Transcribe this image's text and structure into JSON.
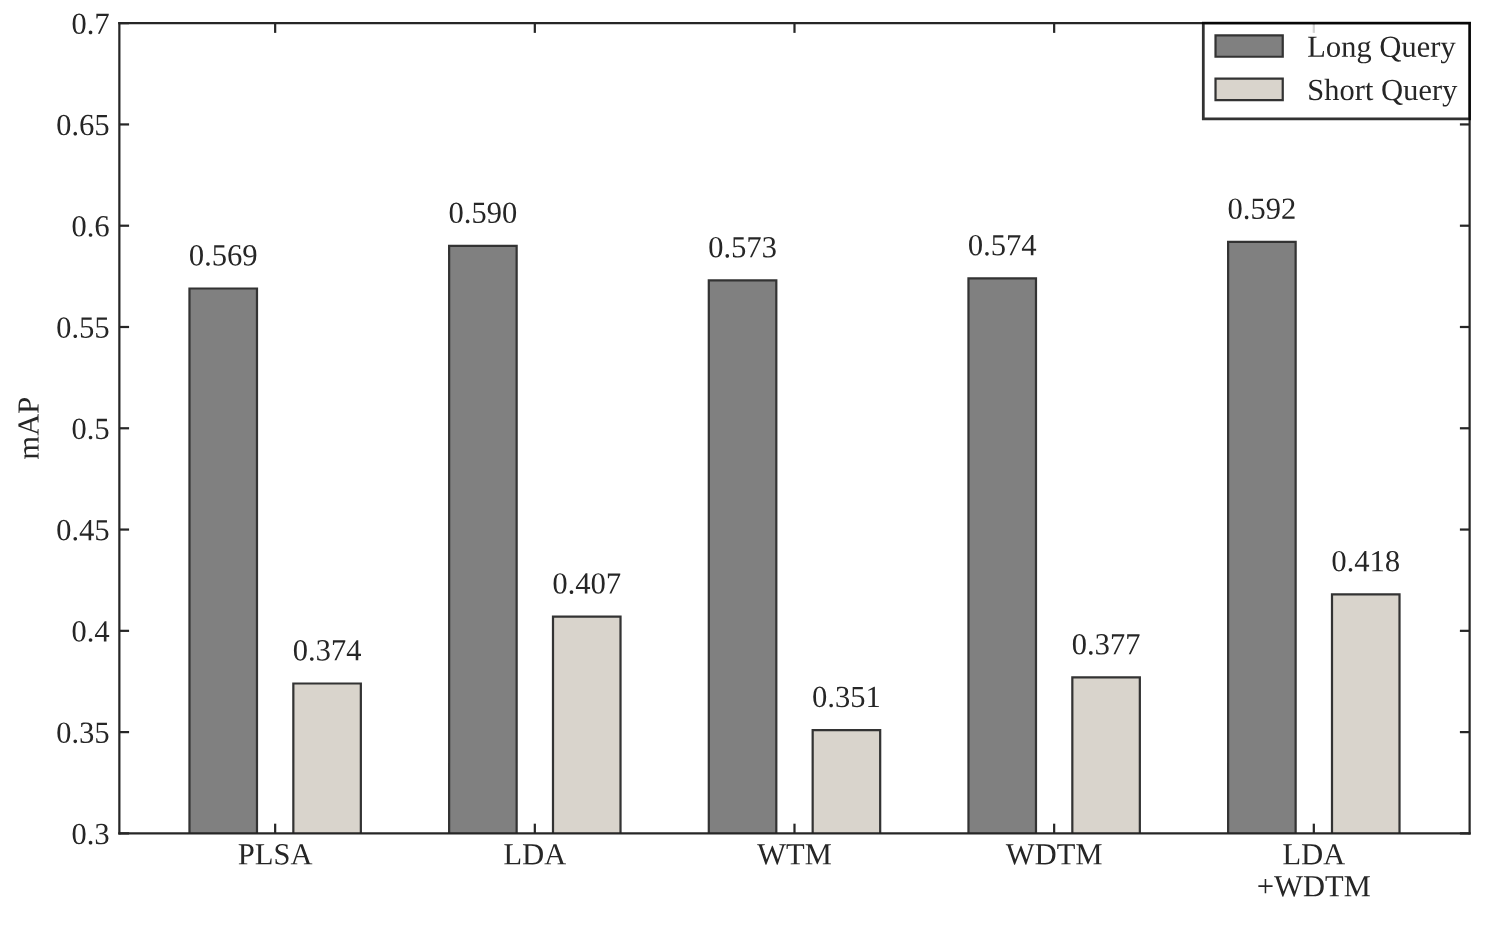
{
  "chart_data": {
    "type": "bar",
    "ylabel": "mAP",
    "categories": [
      "PLSA",
      "LDA",
      "WTM",
      "WDTM",
      "LDA\n+WDTM"
    ],
    "series": [
      {
        "name": "Long Query",
        "color": "#808080",
        "values": [
          0.569,
          0.59,
          0.573,
          0.574,
          0.592
        ],
        "value_labels": [
          "0.569",
          "0.590",
          "0.573",
          "0.574",
          "0.592"
        ]
      },
      {
        "name": "Short Query",
        "color": "#d9d4cc",
        "values": [
          0.374,
          0.407,
          0.351,
          0.377,
          0.418
        ],
        "value_labels": [
          "0.374",
          "0.407",
          "0.351",
          "0.377",
          "0.418"
        ]
      }
    ],
    "ylim": [
      0.3,
      0.7
    ],
    "yticks": [
      0.3,
      0.35,
      0.4,
      0.45,
      0.5,
      0.55,
      0.6,
      0.65,
      0.7
    ],
    "legend": "top right",
    "grid": false
  }
}
